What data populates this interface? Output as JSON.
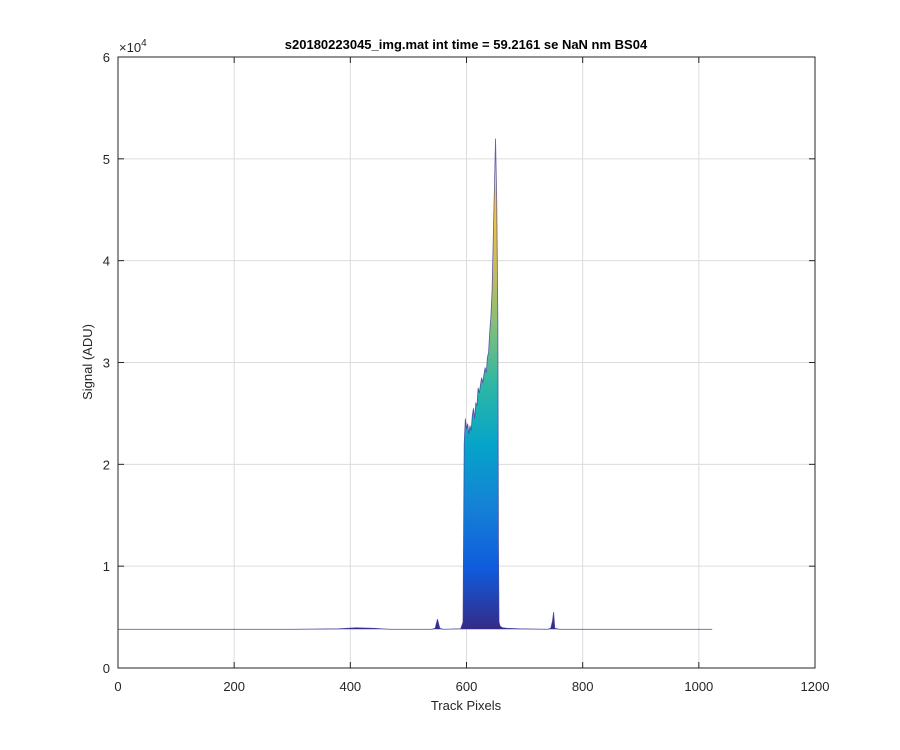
{
  "chart_data": {
    "type": "area",
    "title": "s20180223045_img.mat int time = 59.2161 se  NaN nm BS04",
    "xlabel": "Track Pixels",
    "ylabel": "Signal (ADU)",
    "xlim": [
      0,
      1200
    ],
    "ylim": [
      0,
      60000
    ],
    "x_ticks": [
      0,
      200,
      400,
      600,
      800,
      1000,
      1200
    ],
    "y_ticks": [
      0,
      10000,
      20000,
      30000,
      40000,
      50000,
      60000
    ],
    "x_tick_labels": [
      "0",
      "200",
      "400",
      "600",
      "800",
      "1000",
      "1200"
    ],
    "y_tick_labels": [
      "0",
      "1",
      "2",
      "3",
      "4",
      "5",
      "6"
    ],
    "y_exponent_base": "×10",
    "y_exponent_power": "4",
    "grid": true,
    "colormap": "parula",
    "colormap_stops": [
      "#352a87",
      "#0f5cdd",
      "#1481d6",
      "#06a4ca",
      "#2eb7a4",
      "#87bf77",
      "#d1bb59",
      "#fec832",
      "#f9fb0e"
    ],
    "baseline_color": "#3b3b9a",
    "series": [
      {
        "x": [
          0,
          100,
          200,
          300,
          380,
          410,
          440,
          470,
          540,
          546,
          550,
          554,
          560,
          590,
          594,
          596,
          598,
          600,
          602,
          604,
          606,
          608,
          610,
          612,
          614,
          616,
          618,
          620,
          622,
          624,
          626,
          628,
          630,
          632,
          634,
          636,
          638,
          640,
          642,
          644,
          646,
          648,
          650,
          652,
          654,
          655,
          656,
          658,
          662,
          670,
          690,
          740,
          745,
          748,
          750,
          752,
          760,
          800,
          900,
          1023
        ],
        "y": [
          3800,
          3800,
          3800,
          3800,
          3850,
          3950,
          3900,
          3800,
          3800,
          3900,
          4800,
          3900,
          3800,
          3850,
          4500,
          22000,
          24500,
          23500,
          24000,
          23000,
          23800,
          23300,
          24800,
          25500,
          24500,
          26000,
          25800,
          27500,
          27000,
          27800,
          28500,
          28000,
          28800,
          29500,
          29000,
          30500,
          31000,
          33000,
          34500,
          37000,
          42000,
          47000,
          52000,
          46000,
          34000,
          12000,
          4500,
          4100,
          3950,
          3900,
          3850,
          3800,
          3900,
          4600,
          5500,
          3900,
          3800,
          3800,
          3800,
          3800
        ]
      }
    ]
  }
}
